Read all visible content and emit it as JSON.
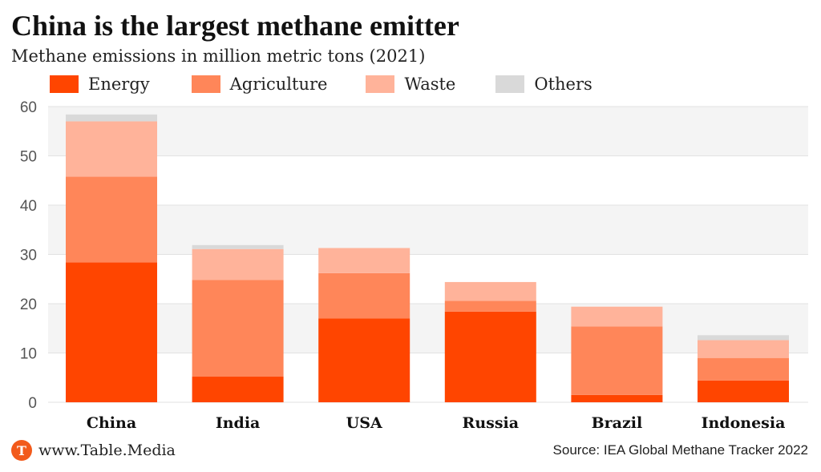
{
  "title": "China is the largest methane emitter",
  "subtitle": "Methane emissions in million metric tons (2021)",
  "legend": [
    {
      "label": "Energy",
      "color": "#ff4500"
    },
    {
      "label": "Agriculture",
      "color": "#ff8659"
    },
    {
      "label": "Waste",
      "color": "#ffb39a"
    },
    {
      "label": "Others",
      "color": "#d9d9d9"
    }
  ],
  "footer": {
    "logo_letter": "T",
    "site": "www.Table.Media",
    "source": "Source: IEA Global Methane Tracker 2022"
  },
  "chart_data": {
    "type": "bar",
    "stacked": true,
    "title": "China is the largest methane emitter",
    "subtitle": "Methane emissions in million metric tons (2021)",
    "categories": [
      "China",
      "India",
      "USA",
      "Russia",
      "Brazil",
      "Indonesia"
    ],
    "series": [
      {
        "name": "Energy",
        "color": "#ff4500",
        "values": [
          28.4,
          5.2,
          17.0,
          18.4,
          1.5,
          4.4
        ]
      },
      {
        "name": "Agriculture",
        "color": "#ff8659",
        "values": [
          17.4,
          19.6,
          9.2,
          2.2,
          13.9,
          4.6
        ]
      },
      {
        "name": "Waste",
        "color": "#ffb39a",
        "values": [
          11.2,
          6.3,
          5.1,
          3.8,
          4.0,
          3.6
        ]
      },
      {
        "name": "Others",
        "color": "#d9d9d9",
        "values": [
          1.4,
          0.8,
          0.0,
          0.0,
          0.0,
          1.0
        ]
      }
    ],
    "ylim": [
      0,
      60
    ],
    "yticks": [
      0,
      10,
      20,
      30,
      40,
      50,
      60
    ],
    "grid": true,
    "legend_position": "top-left"
  }
}
